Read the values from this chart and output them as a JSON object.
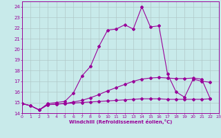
{
  "xlabel": "Windchill (Refroidissement éolien,°C)",
  "x_values": [
    0,
    1,
    2,
    3,
    4,
    5,
    6,
    7,
    8,
    9,
    10,
    11,
    12,
    13,
    14,
    15,
    16,
    17,
    18,
    19,
    20,
    21,
    22,
    23
  ],
  "line1": [
    14.9,
    14.7,
    14.3,
    14.9,
    15.0,
    15.1,
    15.9,
    17.5,
    18.4,
    20.3,
    21.8,
    21.9,
    22.3,
    21.9,
    24.0,
    22.1,
    22.2,
    17.7,
    16.0,
    15.5,
    17.2,
    17.0,
    16.9,
    null
  ],
  "line2": [
    14.9,
    14.7,
    14.3,
    14.8,
    14.85,
    14.9,
    15.05,
    15.2,
    15.45,
    15.75,
    16.1,
    16.4,
    16.7,
    17.0,
    17.2,
    17.3,
    17.35,
    17.3,
    17.25,
    17.25,
    17.3,
    17.2,
    15.35,
    null
  ],
  "line3": [
    14.9,
    14.7,
    14.3,
    14.78,
    14.85,
    14.9,
    14.95,
    15.0,
    15.05,
    15.1,
    15.15,
    15.2,
    15.25,
    15.3,
    15.35,
    15.35,
    15.35,
    15.3,
    15.3,
    15.3,
    15.3,
    15.3,
    15.35,
    null
  ],
  "line_color": "#990099",
  "bg_color": "#c8eaea",
  "grid_color": "#b0c8c8",
  "xlim": [
    0,
    23
  ],
  "ylim": [
    14,
    24.5
  ],
  "yticks": [
    14,
    15,
    16,
    17,
    18,
    19,
    20,
    21,
    22,
    23,
    24
  ],
  "xticks": [
    0,
    1,
    2,
    3,
    4,
    5,
    6,
    7,
    8,
    9,
    10,
    11,
    12,
    13,
    14,
    15,
    16,
    17,
    18,
    19,
    20,
    21,
    22,
    23
  ]
}
